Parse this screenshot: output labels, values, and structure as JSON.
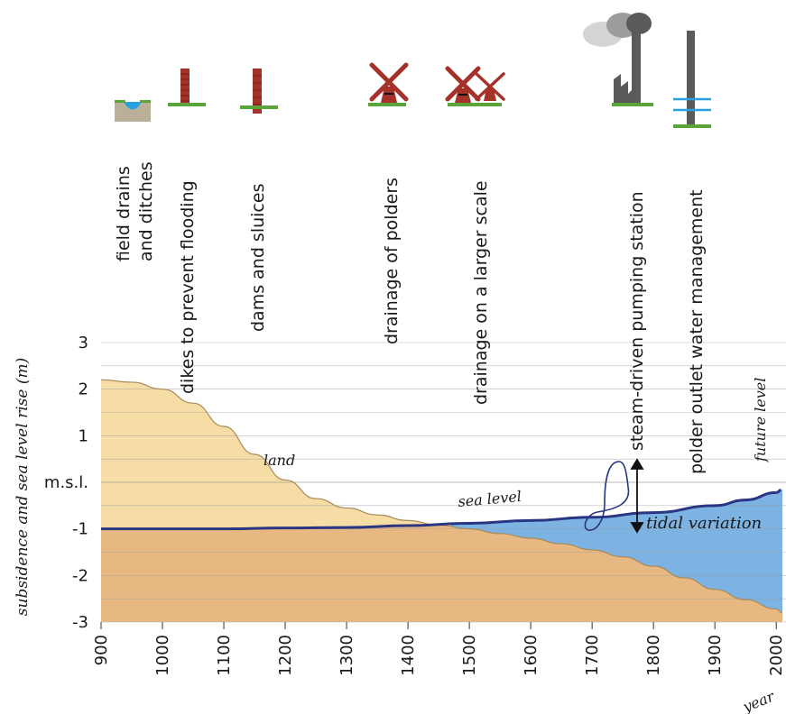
{
  "chart_data": {
    "type": "area",
    "ylabel": "subsidence and sea level rise (m)",
    "xlabel": "year",
    "ylim": [
      -3,
      3
    ],
    "xlim": [
      900,
      2010
    ],
    "x_ticks": [
      "900",
      "1000",
      "1100",
      "1200",
      "1300",
      "1400",
      "1500",
      "1600",
      "1700",
      "1800",
      "1900",
      "2000",
      "2010"
    ],
    "y_ticks": [
      "3",
      "2",
      "1",
      "m.s.l.",
      "-1",
      "-2",
      "-3"
    ],
    "grid": true,
    "series": [
      {
        "name": "land",
        "x": [
          900,
          950,
          1000,
          1050,
          1100,
          1150,
          1200,
          1250,
          1300,
          1350,
          1400,
          1450,
          1500,
          1550,
          1600,
          1650,
          1700,
          1750,
          1800,
          1850,
          1900,
          1950,
          2000,
          2010
        ],
        "values": [
          2.2,
          2.15,
          2.0,
          1.7,
          1.2,
          0.6,
          0.05,
          -0.35,
          -0.55,
          -0.7,
          -0.82,
          -0.92,
          -1.0,
          -1.1,
          -1.2,
          -1.32,
          -1.45,
          -1.6,
          -1.8,
          -2.05,
          -2.3,
          -2.52,
          -2.72,
          -2.8
        ],
        "color": "#f6dca5"
      },
      {
        "name": "sea level",
        "x": [
          900,
          1000,
          1100,
          1200,
          1300,
          1400,
          1500,
          1600,
          1700,
          1800,
          1900,
          1950,
          2000,
          2010
        ],
        "values": [
          -1.0,
          -1.0,
          -1.0,
          -0.98,
          -0.97,
          -0.93,
          -0.88,
          -0.82,
          -0.75,
          -0.65,
          -0.5,
          -0.38,
          -0.22,
          -0.15
        ],
        "color": "#2a3583"
      }
    ],
    "annotations": {
      "land": "land",
      "sea_level": "sea level",
      "tidal": "tidal variation",
      "future": "future level"
    },
    "colors": {
      "land_above": "#f6dca5",
      "land_below": "#e8b882",
      "water": "#7cb3e3",
      "sea_line": "#2a3583",
      "grid": "#9c9c9c",
      "icon_red": "#a5322a",
      "grass": "#5aa43c"
    }
  },
  "milestones": [
    {
      "label": "field drains\nand ditches",
      "line1": "field drains",
      "line2": "and ditches",
      "icon": "ditch-icon"
    },
    {
      "label": "dikes to prevent flooding",
      "icon": "dike-post-icon"
    },
    {
      "label": "dams and sluices",
      "icon": "dam-post-icon"
    },
    {
      "label": "drainage of polders",
      "icon": "windmill-icon"
    },
    {
      "label": "drainage on a larger scale",
      "icon": "windmills-icon"
    },
    {
      "label": "steam-driven pumping station",
      "icon": "steam-factory-icon"
    },
    {
      "label": "polder outlet water management",
      "icon": "outlet-tower-icon"
    }
  ]
}
